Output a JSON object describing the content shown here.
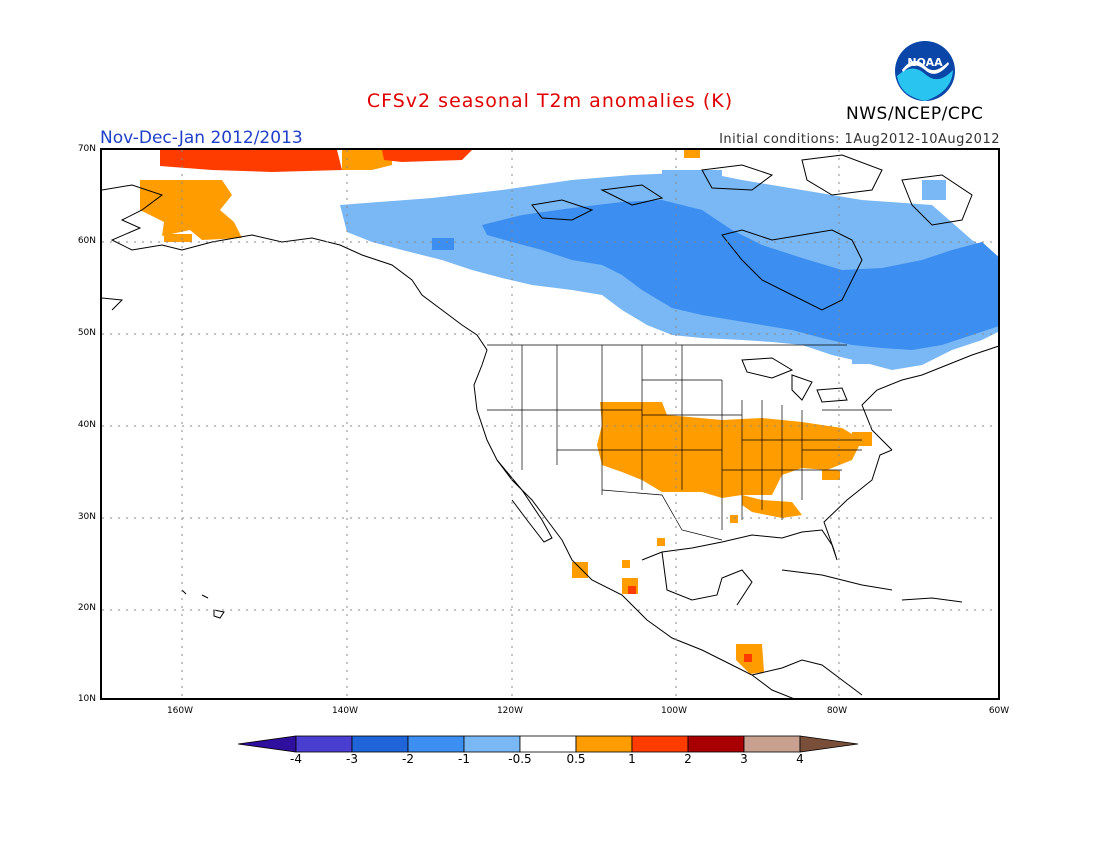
{
  "title": "CFSv2 seasonal T2m anomalies (K)",
  "season_label": "Nov-Dec-Jan 2012/2013",
  "initial_conditions": "Initial conditions: 1Aug2012-10Aug2012",
  "agency": "NWS/NCEP/CPC",
  "logo_text": "NOAA",
  "y_ticks": [
    "70N",
    "60N",
    "50N",
    "40N",
    "30N",
    "20N",
    "10N"
  ],
  "x_ticks": [
    "160W",
    "140W",
    "120W",
    "100W",
    "80W",
    "60W"
  ],
  "colorbar": {
    "labels": [
      "-4",
      "-3",
      "-2",
      "-1",
      "-0.5",
      "0.5",
      "1",
      "2",
      "3",
      "4"
    ],
    "colors": [
      "#2e0f9e",
      "#4a3ed0",
      "#1f64d8",
      "#3c8ef0",
      "#7ab8f5",
      "#ffffff",
      "#ff9c00",
      "#ff3c00",
      "#a80000",
      "#c8a090",
      "#7a4f3a"
    ]
  }
}
